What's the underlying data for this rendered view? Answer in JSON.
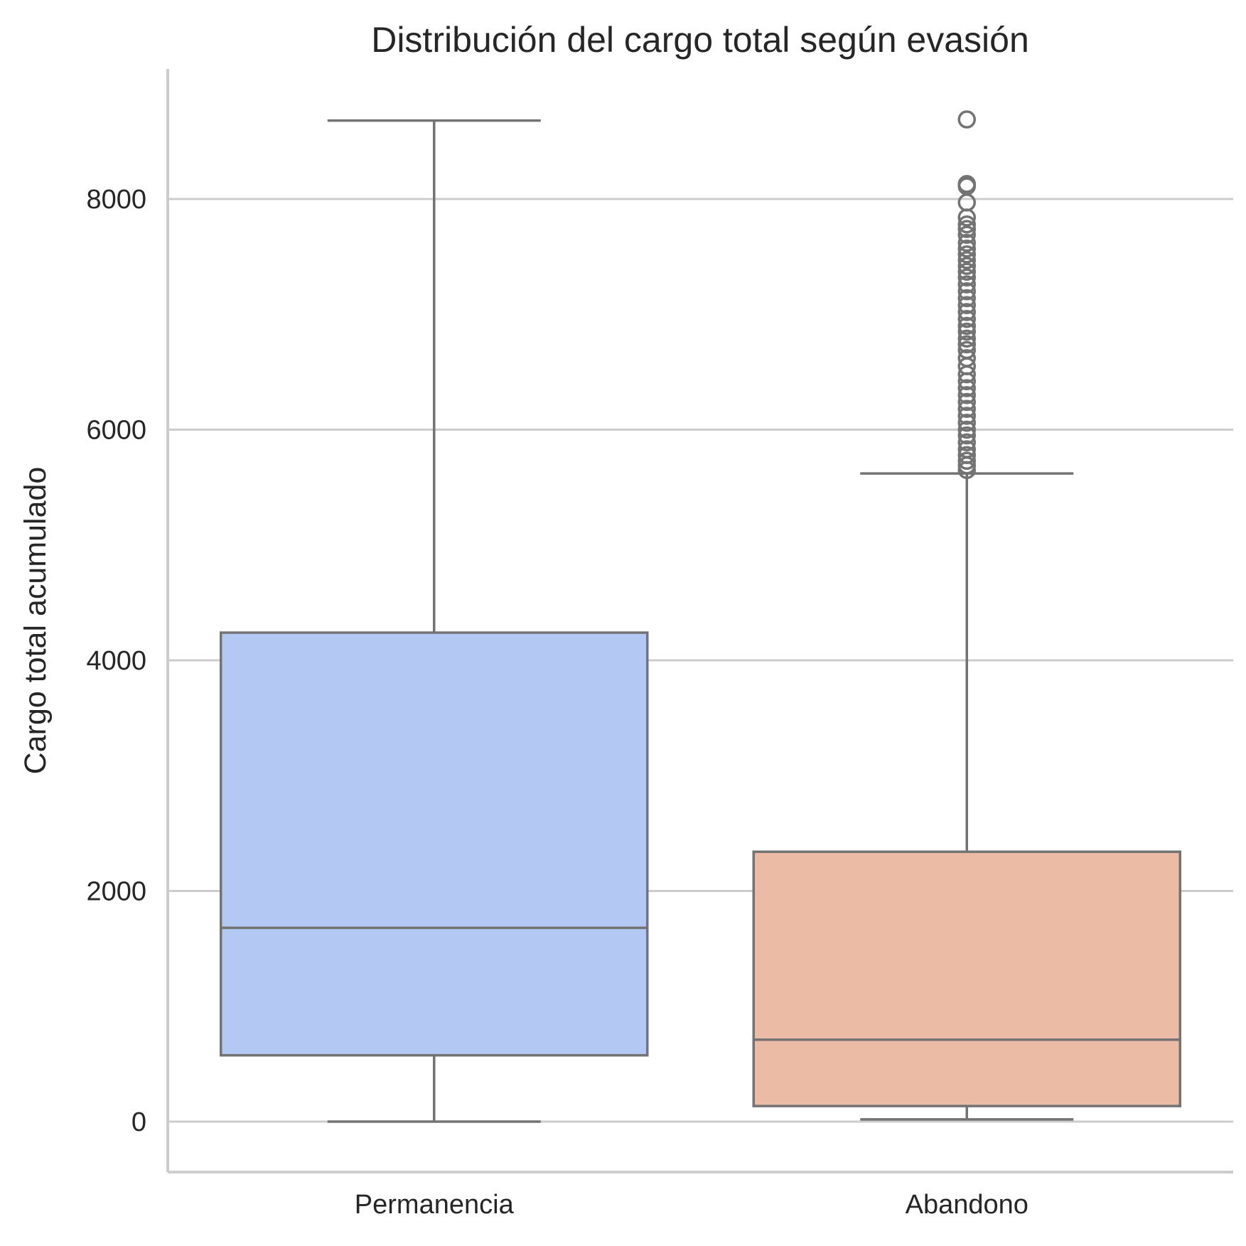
{
  "chart_data": {
    "type": "box",
    "title": "Distribución del cargo total según evasión",
    "xlabel": "",
    "ylabel": "Cargo total acumulado",
    "ylim": [
      -450,
      9100
    ],
    "yticks": [
      0,
      2000,
      4000,
      6000,
      8000
    ],
    "grid": "horizontal",
    "categories": [
      "Permanencia",
      "Abandono"
    ],
    "colors": {
      "Permanencia": "#b3c8f2",
      "Abandono": "#ecbba5",
      "lines": "#737373",
      "grid": "#cccccc"
    },
    "boxes": [
      {
        "category": "Permanencia",
        "whisker_low": 0,
        "q1": 575,
        "median": 1680,
        "q3": 4240,
        "whisker_high": 8680,
        "outliers": []
      },
      {
        "category": "Abandono",
        "whisker_low": 19,
        "q1": 135,
        "median": 710,
        "q3": 2340,
        "whisker_high": 5620,
        "outliers": [
          8690,
          8130,
          8110,
          7970,
          7840,
          7780,
          7740,
          7690,
          7620,
          7570,
          7520,
          7470,
          7420,
          7370,
          7320,
          7260,
          7200,
          7140,
          7080,
          7020,
          6960,
          6900,
          6850,
          6790,
          6740,
          6690,
          6620,
          6550,
          6480,
          6420,
          6360,
          6300,
          6240,
          6180,
          6120,
          6060,
          6000,
          5950,
          5890,
          5830,
          5780,
          5730,
          5690,
          5650
        ]
      }
    ]
  }
}
